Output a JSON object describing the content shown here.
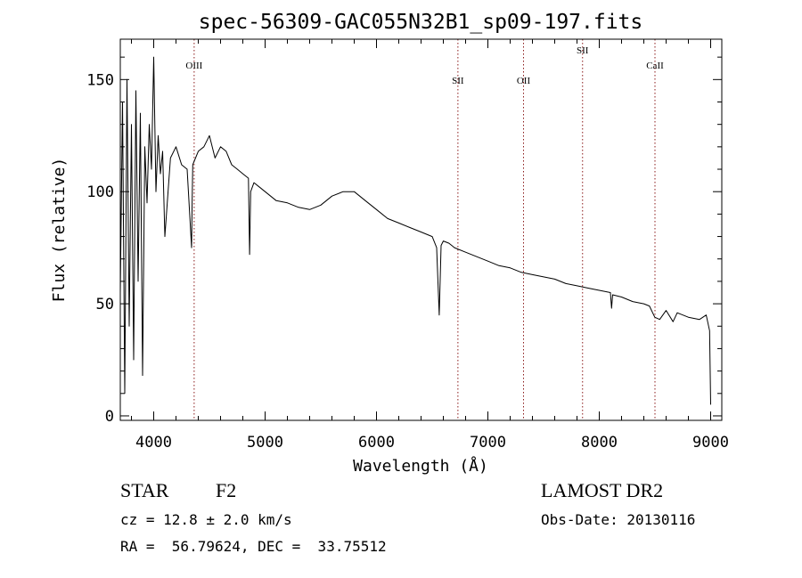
{
  "chart_data": {
    "type": "line",
    "title": "spec-56309-GAC055N32B1_sp09-197.fits",
    "xlabel": "Wavelength (Å)",
    "ylabel": "Flux (relative)",
    "xlim": [
      3700,
      9100
    ],
    "ylim": [
      -2,
      168
    ],
    "x_ticks": [
      4000,
      5000,
      6000,
      7000,
      8000,
      9000
    ],
    "x_tick_labels": [
      "4000",
      "5000",
      "6000",
      "7000",
      "8000",
      "9000"
    ],
    "y_ticks": [
      0,
      50,
      100,
      150
    ],
    "y_tick_labels": [
      "0",
      "50",
      "100",
      "150"
    ],
    "grid": false,
    "series": [
      {
        "name": "spectrum",
        "x": [
          3700,
          3720,
          3740,
          3760,
          3780,
          3800,
          3820,
          3840,
          3860,
          3880,
          3900,
          3920,
          3940,
          3960,
          3980,
          4000,
          4020,
          4040,
          4060,
          4080,
          4100,
          4150,
          4200,
          4250,
          4300,
          4340,
          4345,
          4350,
          4400,
          4450,
          4500,
          4550,
          4600,
          4650,
          4700,
          4750,
          4800,
          4850,
          4861,
          4870,
          4900,
          4950,
          5000,
          5100,
          5200,
          5300,
          5400,
          5500,
          5600,
          5700,
          5800,
          5900,
          6000,
          6100,
          6200,
          6300,
          6400,
          6500,
          6540,
          6563,
          6580,
          6600,
          6650,
          6700,
          6800,
          6900,
          7000,
          7100,
          7200,
          7300,
          7400,
          7500,
          7600,
          7700,
          7800,
          7900,
          8000,
          8100,
          8110,
          8120,
          8200,
          8300,
          8400,
          8450,
          8498,
          8542,
          8600,
          8662,
          8700,
          8800,
          8900,
          8960,
          8990,
          9000
        ],
        "y": [
          55,
          140,
          10,
          150,
          40,
          130,
          25,
          145,
          60,
          135,
          18,
          120,
          95,
          130,
          110,
          160,
          100,
          125,
          108,
          118,
          80,
          115,
          120,
          112,
          110,
          75,
          95,
          112,
          118,
          120,
          125,
          115,
          120,
          118,
          112,
          110,
          108,
          106,
          72,
          100,
          104,
          102,
          100,
          96,
          95,
          93,
          92,
          94,
          98,
          100,
          100,
          96,
          92,
          88,
          86,
          84,
          82,
          80,
          75,
          45,
          76,
          78,
          77,
          75,
          73,
          71,
          69,
          67,
          66,
          64,
          63,
          62,
          61,
          59,
          58,
          57,
          56,
          55,
          48,
          54,
          53,
          51,
          50,
          49,
          44,
          43,
          47,
          42,
          46,
          44,
          43,
          45,
          38,
          5
        ]
      }
    ],
    "annotations": [
      {
        "label": "OIII",
        "x": 4363,
        "label_level": "high"
      },
      {
        "label": "SII",
        "x": 6731,
        "label_level": "mid"
      },
      {
        "label": "OII",
        "x": 7320,
        "label_level": "mid"
      },
      {
        "label": "SII",
        "x": 7850,
        "label_level": "top"
      },
      {
        "label": "CaII",
        "x": 8500,
        "label_level": "high"
      }
    ],
    "colors": {
      "line": "#000000",
      "annotation": "#8b1a1a",
      "axis": "#000000"
    }
  },
  "info": {
    "object_class": "STAR",
    "subclass": "F2",
    "cz": "cz = 12.8 ± 2.0 km/s",
    "coords": "RA =  56.79624, DEC =  33.75512",
    "survey": "LAMOST DR2",
    "obs_date": "Obs-Date: 20130116"
  }
}
